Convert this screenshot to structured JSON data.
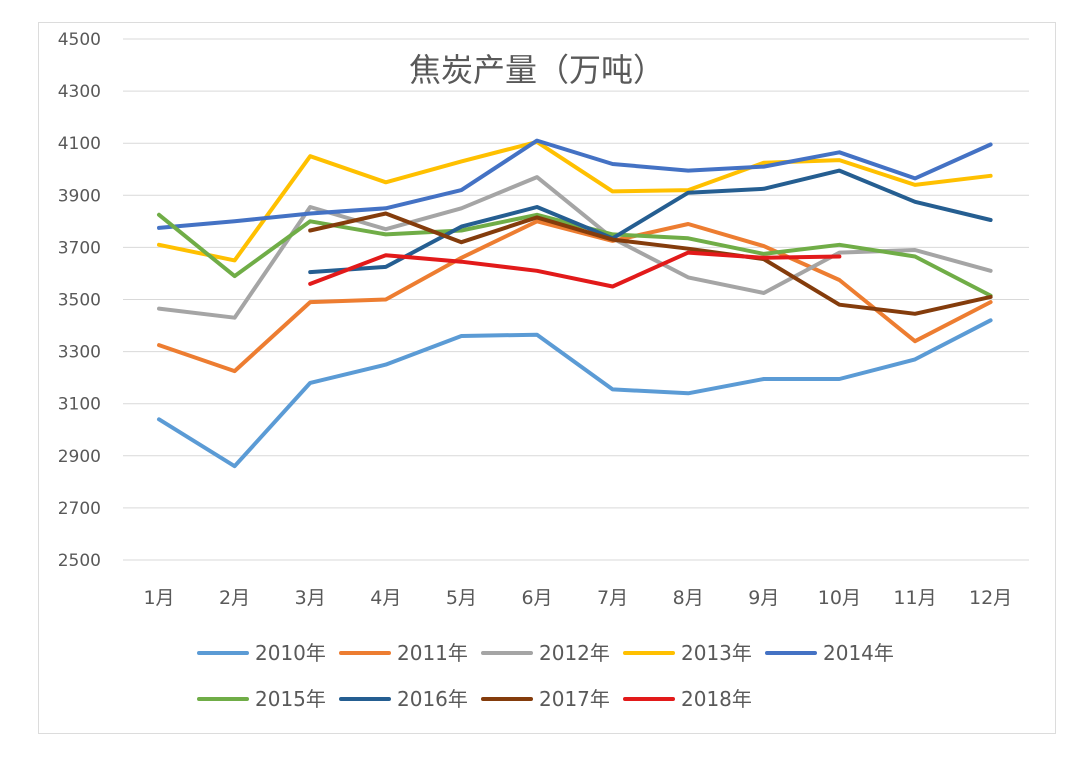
{
  "chart_data": {
    "type": "line",
    "title": "焦炭产量（万吨）",
    "categories": [
      "1月",
      "2月",
      "3月",
      "4月",
      "5月",
      "6月",
      "7月",
      "8月",
      "9月",
      "10月",
      "11月",
      "12月"
    ],
    "y_ticks": [
      2500,
      2700,
      2900,
      3100,
      3300,
      3500,
      3700,
      3900,
      4100,
      4300,
      4500
    ],
    "ylim": [
      2500,
      4500
    ],
    "grid": true,
    "legend_position": "bottom",
    "series": [
      {
        "name": "2010年",
        "color": "#5b9bd5",
        "values": [
          3040,
          2860,
          3180,
          3250,
          3360,
          3365,
          3155,
          3140,
          3195,
          3195,
          3270,
          3420
        ]
      },
      {
        "name": "2011年",
        "color": "#ed7d31",
        "values": [
          3325,
          3225,
          3490,
          3500,
          3660,
          3800,
          3725,
          3790,
          3705,
          3575,
          3340,
          3490
        ]
      },
      {
        "name": "2012年",
        "color": "#a5a5a5",
        "values": [
          3465,
          3430,
          3855,
          3770,
          3850,
          3970,
          3735,
          3585,
          3525,
          3680,
          3690,
          3610
        ]
      },
      {
        "name": "2013年",
        "color": "#ffc000",
        "values": [
          3710,
          3650,
          4050,
          3950,
          4030,
          4105,
          3915,
          3920,
          4025,
          4035,
          3940,
          3975
        ]
      },
      {
        "name": "2014年",
        "color": "#4472c4",
        "values": [
          3775,
          3800,
          3830,
          3850,
          3920,
          4110,
          4020,
          3995,
          4010,
          4065,
          3965,
          4095
        ]
      },
      {
        "name": "2015年",
        "color": "#70ad47",
        "values": [
          3825,
          3590,
          3800,
          3750,
          3765,
          3825,
          3750,
          3735,
          3675,
          3710,
          3665,
          3515
        ]
      },
      {
        "name": "2016年",
        "color": "#255e91",
        "values": [
          null,
          null,
          3605,
          3625,
          3780,
          3855,
          3735,
          3910,
          3925,
          3995,
          3875,
          3805
        ]
      },
      {
        "name": "2017年",
        "color": "#843c0c",
        "values": [
          null,
          null,
          3765,
          3830,
          3720,
          3815,
          3730,
          3695,
          3655,
          3480,
          3445,
          3510
        ]
      },
      {
        "name": "2018年",
        "color": "#e21a1a",
        "values": [
          null,
          null,
          3560,
          3670,
          3645,
          3610,
          3550,
          3680,
          3660,
          3665,
          null,
          null
        ]
      }
    ]
  }
}
